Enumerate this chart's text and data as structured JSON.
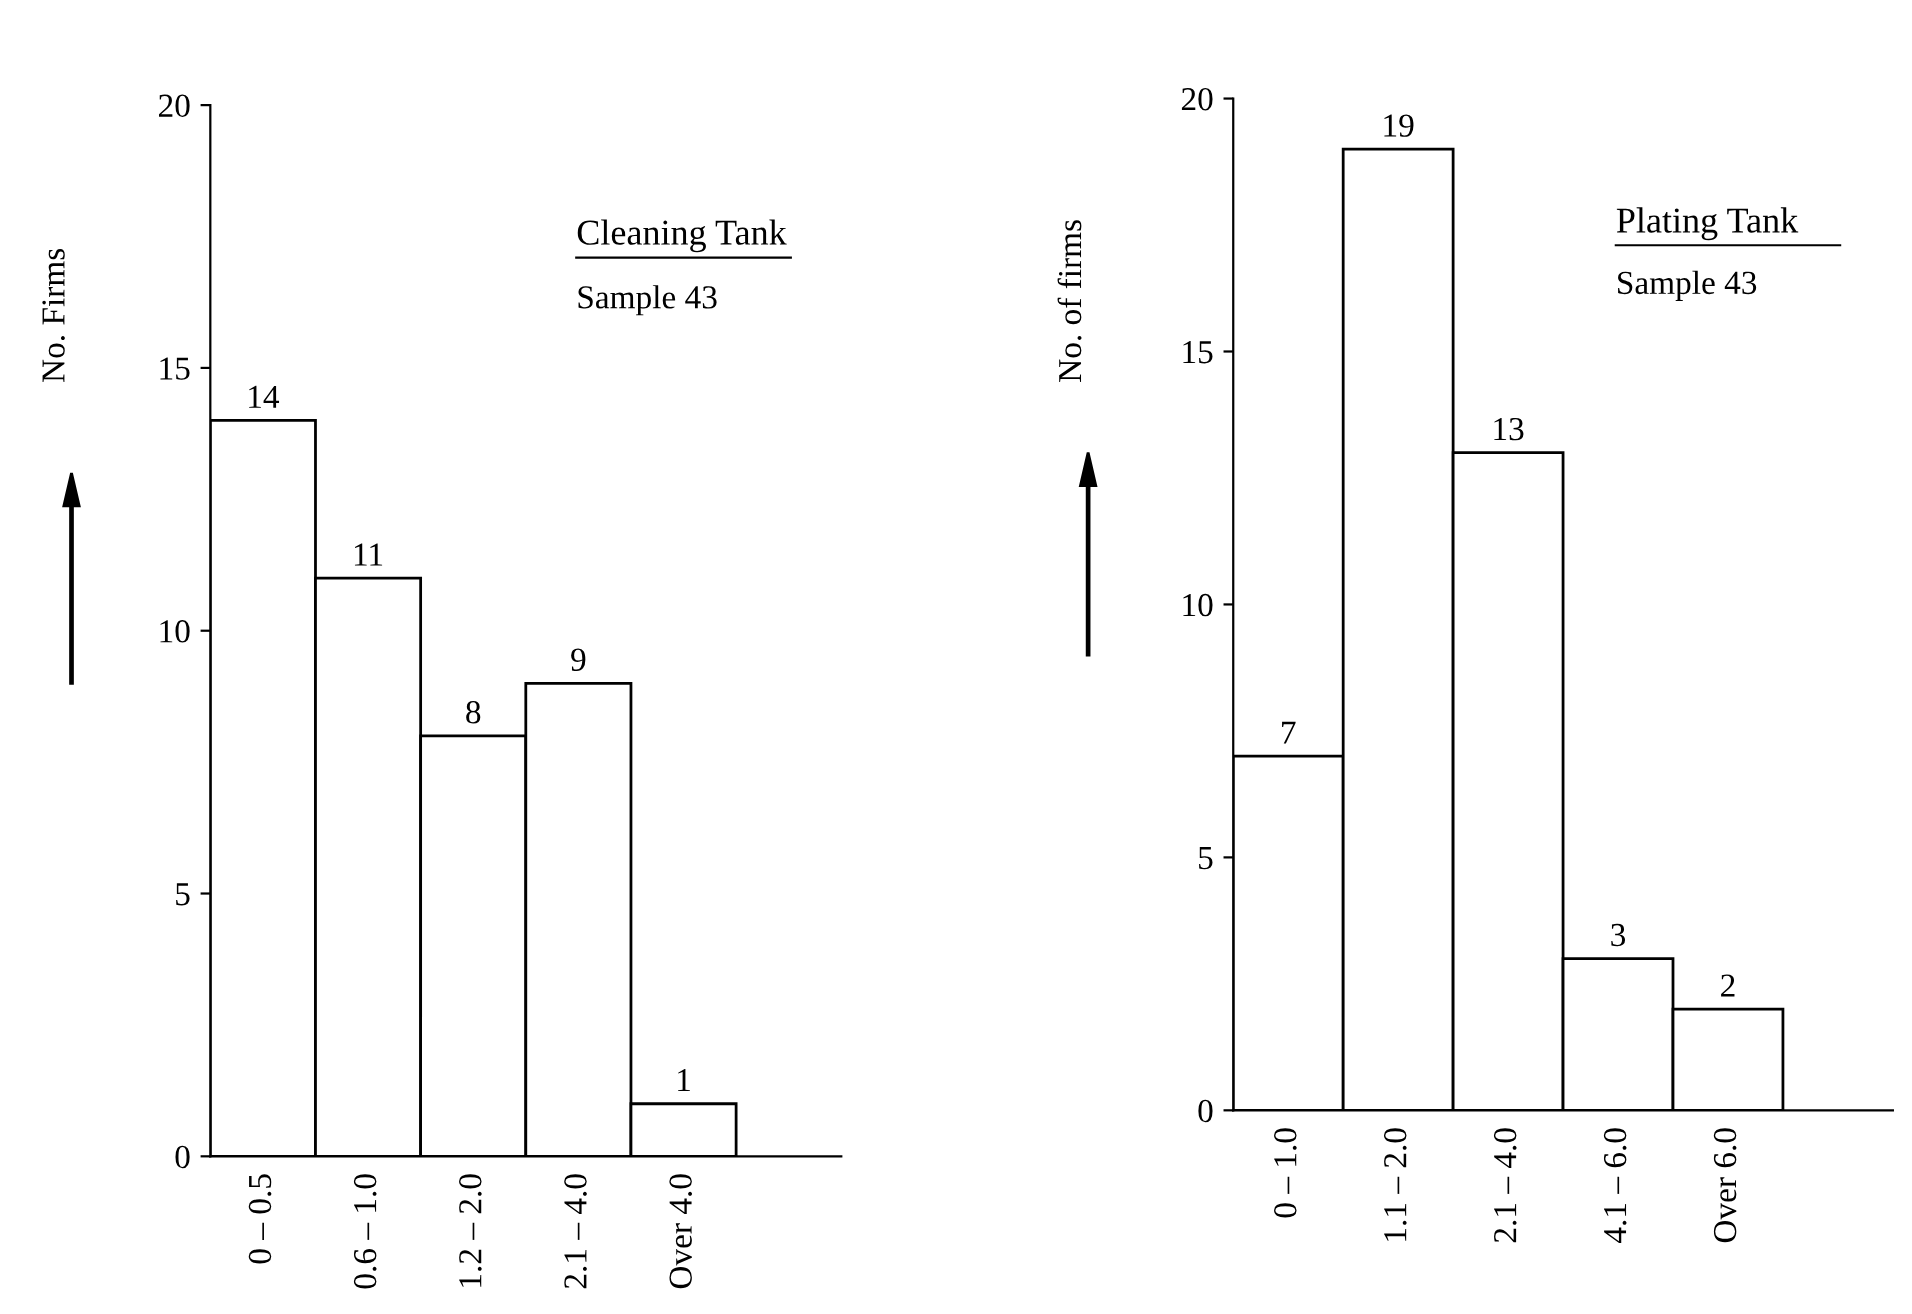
{
  "chart_data": [
    {
      "type": "bar",
      "title": "Cleaning Tank",
      "subtitle": "Sample 43",
      "ylabel": "No. Firms",
      "categories": [
        "0 – 0.5",
        "0.6 – 1.0",
        "1.2 – 2.0",
        "2.1 – 4.0",
        "Over 4.0"
      ],
      "values": [
        14,
        11,
        8,
        9,
        1
      ],
      "color": "#ffffff",
      "ylim": [
        0,
        20
      ],
      "yticks": [
        0,
        5,
        10,
        15,
        20
      ],
      "data_labels": true,
      "grid": false,
      "legend": false
    },
    {
      "type": "bar",
      "title": "Plating Tank",
      "subtitle": "Sample 43",
      "ylabel": "No. of firms",
      "categories": [
        "0 – 1.0",
        "1.1 – 2.0",
        "2.1 – 4.0",
        "4.1 – 6.0",
        "Over 6.0"
      ],
      "values": [
        7,
        19,
        13,
        3,
        2
      ],
      "color": "#ffffff",
      "ylim": [
        0,
        20
      ],
      "yticks": [
        0,
        5,
        10,
        15,
        20
      ],
      "data_labels": true,
      "grid": false,
      "legend": false
    }
  ]
}
